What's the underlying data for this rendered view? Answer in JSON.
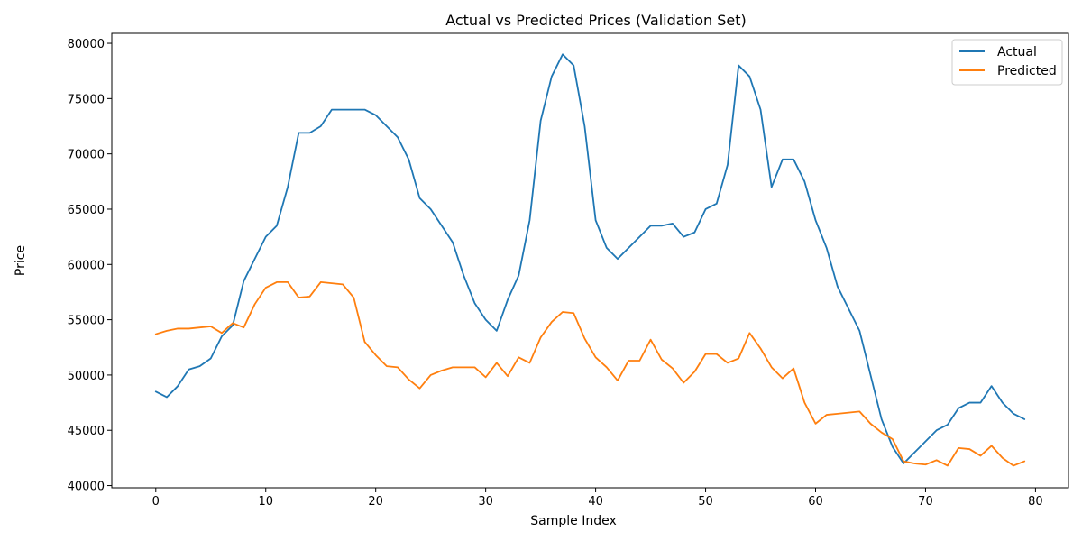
{
  "chart_data": {
    "type": "line",
    "title": "Actual vs Predicted Prices (Validation Set)",
    "xlabel": "Sample Index",
    "ylabel": "Price",
    "xlim": [
      -4,
      83
    ],
    "ylim": [
      39800,
      80900
    ],
    "x_ticks": [
      0,
      10,
      20,
      30,
      40,
      50,
      60,
      70,
      80
    ],
    "y_ticks": [
      40000,
      45000,
      50000,
      55000,
      60000,
      65000,
      70000,
      75000,
      80000
    ],
    "grid": false,
    "legend_position": "top-right",
    "x": [
      0,
      1,
      2,
      3,
      4,
      5,
      6,
      7,
      8,
      9,
      10,
      11,
      12,
      13,
      14,
      15,
      16,
      17,
      18,
      19,
      20,
      21,
      22,
      23,
      24,
      25,
      26,
      27,
      28,
      29,
      30,
      31,
      32,
      33,
      34,
      35,
      36,
      37,
      38,
      39,
      40,
      41,
      42,
      43,
      44,
      45,
      46,
      47,
      48,
      49,
      50,
      51,
      52,
      53,
      54,
      55,
      56,
      57,
      58,
      59,
      60,
      61,
      62,
      63,
      64,
      65,
      66,
      67,
      68,
      69,
      70,
      71,
      72,
      73,
      74,
      75,
      76,
      77,
      78,
      79
    ],
    "series": [
      {
        "name": "Actual",
        "color": "#1f77b4",
        "values": [
          48500,
          48000,
          49000,
          50500,
          50800,
          51500,
          53500,
          54500,
          58500,
          60500,
          62500,
          63500,
          67000,
          71900,
          71900,
          72500,
          74000,
          74000,
          74000,
          74000,
          73500,
          72500,
          71500,
          69500,
          66000,
          65000,
          63500,
          62000,
          59000,
          56500,
          55000,
          54000,
          56800,
          59000,
          64000,
          73000,
          77000,
          79000,
          78000,
          72500,
          64000,
          61500,
          60500,
          61500,
          62500,
          63500,
          63500,
          63700,
          62500,
          62900,
          65000,
          65500,
          69000,
          78000,
          77000,
          74000,
          67000,
          69500,
          69500,
          67500,
          64000,
          61500,
          58000,
          56000,
          54000,
          50000,
          46000,
          43500,
          42000,
          43000,
          44000,
          45000,
          45500,
          47000,
          47500,
          47500,
          49000,
          47500,
          46500,
          46000
        ]
      },
      {
        "name": "Predicted",
        "color": "#ff7f0e",
        "values": [
          53700,
          54000,
          54200,
          54200,
          54300,
          54400,
          53800,
          54700,
          54300,
          56400,
          57900,
          58400,
          58400,
          57000,
          57100,
          58400,
          58300,
          58200,
          57000,
          53000,
          51800,
          50800,
          50700,
          49600,
          48800,
          50000,
          50400,
          50700,
          50700,
          50700,
          49800,
          51100,
          49900,
          51600,
          51100,
          53400,
          54800,
          55700,
          55600,
          53300,
          51600,
          50700,
          49500,
          51300,
          51300,
          53200,
          51400,
          50600,
          49300,
          50300,
          51900,
          51900,
          51100,
          51500,
          53800,
          52400,
          50700,
          49700,
          50600,
          47500,
          45600,
          46400,
          46500,
          46600,
          46700,
          45600,
          44800,
          44200,
          42200,
          42000,
          41900,
          42300,
          41800,
          43400,
          43300,
          42700,
          43600,
          42500,
          41800,
          42200
        ]
      }
    ]
  }
}
